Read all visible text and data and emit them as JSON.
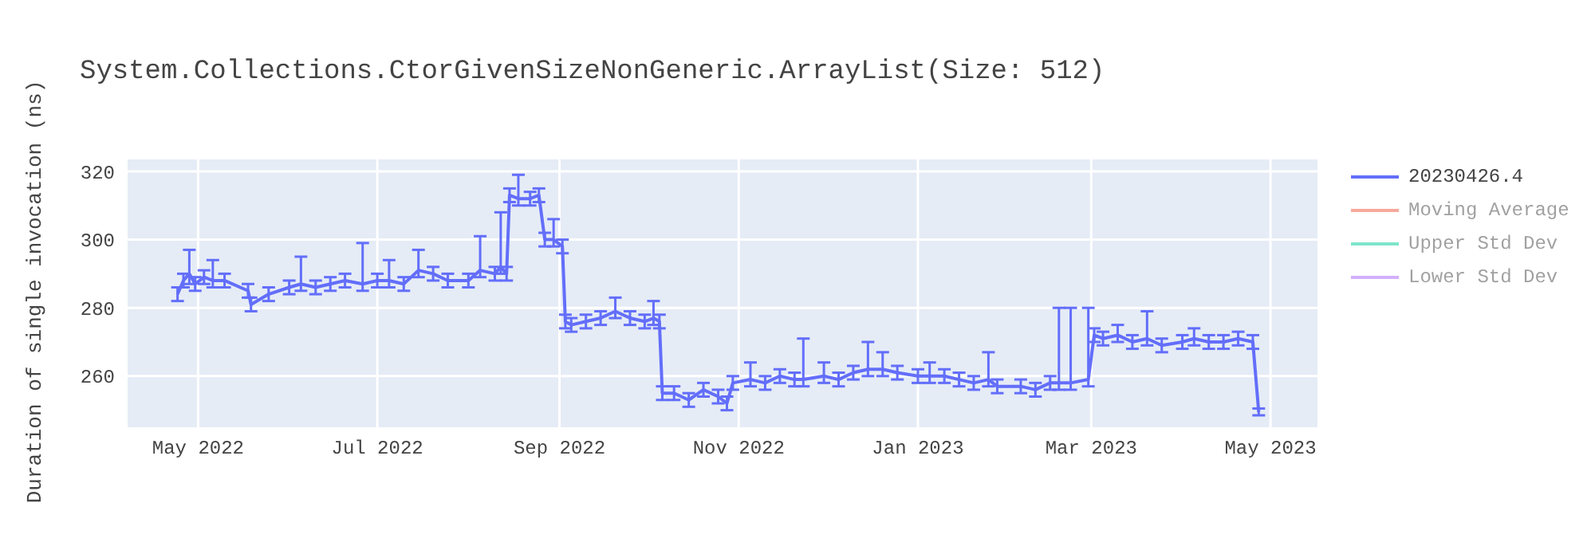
{
  "chart_data": {
    "type": "line",
    "title": "System.Collections.CtorGivenSizeNonGeneric.ArrayList(Size: 512)",
    "ylabel": "Duration of single invocation (ns)",
    "x": [
      "2022-04-24",
      "2022-04-26",
      "2022-04-28",
      "2022-04-30",
      "2022-05-03",
      "2022-05-06",
      "2022-05-10",
      "2022-05-18",
      "2022-05-19",
      "2022-05-25",
      "2022-06-01",
      "2022-06-05",
      "2022-06-10",
      "2022-06-15",
      "2022-06-20",
      "2022-06-26",
      "2022-07-01",
      "2022-07-05",
      "2022-07-10",
      "2022-07-15",
      "2022-07-20",
      "2022-07-25",
      "2022-08-01",
      "2022-08-05",
      "2022-08-10",
      "2022-08-12",
      "2022-08-14",
      "2022-08-15",
      "2022-08-18",
      "2022-08-22",
      "2022-08-25",
      "2022-08-27",
      "2022-08-30",
      "2022-09-02",
      "2022-09-03",
      "2022-09-05",
      "2022-09-10",
      "2022-09-15",
      "2022-09-20",
      "2022-09-25",
      "2022-09-30",
      "2022-10-03",
      "2022-10-05",
      "2022-10-06",
      "2022-10-10",
      "2022-10-15",
      "2022-10-20",
      "2022-10-25",
      "2022-10-28",
      "2022-10-30",
      "2022-11-05",
      "2022-11-10",
      "2022-11-15",
      "2022-11-20",
      "2022-11-23",
      "2022-11-30",
      "2022-12-05",
      "2022-12-10",
      "2022-12-15",
      "2022-12-20",
      "2022-12-25",
      "2023-01-01",
      "2023-01-05",
      "2023-01-10",
      "2023-01-15",
      "2023-01-20",
      "2023-01-25",
      "2023-01-28",
      "2023-02-05",
      "2023-02-10",
      "2023-02-15",
      "2023-02-18",
      "2023-02-22",
      "2023-02-28",
      "2023-03-02",
      "2023-03-05",
      "2023-03-10",
      "2023-03-15",
      "2023-03-20",
      "2023-03-25",
      "2023-04-01",
      "2023-04-05",
      "2023-04-10",
      "2023-04-15",
      "2023-04-20",
      "2023-04-25",
      "2023-04-27"
    ],
    "series": [
      {
        "name": "20230426.4",
        "color": "#636efa",
        "values": [
          284,
          288,
          290,
          287,
          289,
          288,
          288,
          285,
          281,
          284,
          286,
          287,
          286,
          287,
          288,
          287,
          288,
          288,
          287,
          291,
          290,
          288,
          288,
          291,
          290,
          292,
          290,
          313,
          312,
          312,
          313,
          300,
          300,
          298,
          276,
          275,
          276,
          277,
          279,
          277,
          276,
          277,
          276,
          255,
          255,
          253,
          256,
          254,
          252,
          258,
          259,
          258,
          260,
          259,
          259,
          260,
          259,
          261,
          262,
          262,
          261,
          260,
          260,
          260,
          259,
          258,
          259,
          257,
          257,
          256,
          258,
          258,
          258,
          259,
          272,
          271,
          272,
          270,
          271,
          269,
          270,
          271,
          270,
          270,
          271,
          270,
          249.5
        ],
        "errors": [
          2,
          2,
          [
            287,
            297
          ],
          2,
          2,
          [
            286,
            294
          ],
          2,
          2,
          2,
          2,
          2,
          [
            285,
            295
          ],
          2,
          2,
          2,
          [
            285,
            299
          ],
          2,
          [
            286,
            294
          ],
          2,
          [
            289,
            297
          ],
          2,
          2,
          2,
          [
            289,
            301
          ],
          2,
          [
            290,
            308
          ],
          2,
          2,
          [
            310,
            319
          ],
          2,
          2,
          2,
          [
            298,
            306
          ],
          2,
          2,
          2,
          2,
          2,
          [
            277,
            283
          ],
          2,
          2,
          [
            275,
            282
          ],
          2,
          2,
          2,
          2,
          2,
          2,
          2,
          2,
          [
            257,
            264
          ],
          2,
          2,
          2,
          [
            257,
            271
          ],
          [
            258,
            264
          ],
          2,
          2,
          [
            260,
            270
          ],
          [
            260,
            267
          ],
          2,
          2,
          [
            258,
            264
          ],
          2,
          2,
          2,
          [
            257,
            267
          ],
          2,
          2,
          2,
          2,
          [
            256,
            280
          ],
          [
            256,
            280
          ],
          [
            257,
            280
          ],
          2,
          2,
          [
            270,
            275
          ],
          2,
          [
            269,
            279
          ],
          2,
          2,
          [
            269,
            274
          ],
          2,
          2,
          2,
          2,
          1
        ]
      },
      {
        "name": "Moving Average",
        "color": "#ef553b",
        "values": [
          null,
          null,
          null,
          null,
          null,
          null,
          null,
          null,
          null,
          null,
          null,
          null,
          null,
          null,
          null,
          null,
          null,
          null,
          null,
          null,
          null,
          null,
          null,
          null,
          null,
          null,
          null,
          null,
          null,
          null,
          null,
          null,
          null,
          null,
          null,
          null,
          null,
          null,
          null,
          null,
          null,
          null,
          null,
          null,
          null,
          null,
          null,
          null,
          null,
          null,
          null,
          null,
          null,
          null,
          null,
          null,
          null,
          null,
          null,
          null,
          null,
          null,
          null,
          null,
          null,
          null,
          null,
          null,
          null,
          null,
          null,
          null,
          null,
          null,
          null,
          null,
          null,
          null,
          null,
          null,
          null,
          null,
          null,
          null,
          null,
          null,
          null
        ]
      },
      {
        "name": "Upper Std Dev",
        "color": "#00cc96",
        "values": [
          null,
          null,
          null,
          null,
          null,
          null,
          null,
          null,
          null,
          null,
          null,
          null,
          null,
          null,
          null,
          null,
          null,
          null,
          null,
          null,
          null,
          null,
          null,
          null,
          null,
          null,
          null,
          null,
          null,
          null,
          null,
          null,
          null,
          null,
          null,
          null,
          null,
          null,
          null,
          null,
          null,
          null,
          null,
          null,
          null,
          null,
          null,
          null,
          null,
          null,
          null,
          null,
          null,
          null,
          null,
          null,
          null,
          null,
          null,
          null,
          null,
          null,
          null,
          null,
          null,
          null,
          null,
          null,
          null,
          null,
          null,
          null,
          null,
          null,
          null,
          null,
          null,
          null,
          null,
          null,
          null,
          null,
          null,
          null,
          null,
          null,
          null
        ]
      },
      {
        "name": "Lower Std Dev",
        "color": "#ab63fa",
        "values": [
          null,
          null,
          null,
          null,
          null,
          null,
          null,
          null,
          null,
          null,
          null,
          null,
          null,
          null,
          null,
          null,
          null,
          null,
          null,
          null,
          null,
          null,
          null,
          null,
          null,
          null,
          null,
          null,
          null,
          null,
          null,
          null,
          null,
          null,
          null,
          null,
          null,
          null,
          null,
          null,
          null,
          null,
          null,
          null,
          null,
          null,
          null,
          null,
          null,
          null,
          null,
          null,
          null,
          null,
          null,
          null,
          null,
          null,
          null,
          null,
          null,
          null,
          null,
          null,
          null,
          null,
          null,
          null,
          null,
          null,
          null,
          null,
          null,
          null,
          null,
          null,
          null,
          null,
          null,
          null,
          null,
          null,
          null,
          null,
          null,
          null,
          null
        ]
      }
    ],
    "xlim": [
      "2022-04-07",
      "2023-05-17"
    ],
    "xticks": [
      {
        "value": "2022-05-01",
        "label": "May 2022"
      },
      {
        "value": "2022-07-01",
        "label": "Jul 2022"
      },
      {
        "value": "2022-09-01",
        "label": "Sep 2022"
      },
      {
        "value": "2022-11-01",
        "label": "Nov 2022"
      },
      {
        "value": "2023-01-01",
        "label": "Jan 2023"
      },
      {
        "value": "2023-03-01",
        "label": "Mar 2023"
      },
      {
        "value": "2023-05-01",
        "label": "May 2023"
      }
    ],
    "ylim": [
      245,
      323.5
    ],
    "yticks": [
      260,
      280,
      300,
      320
    ],
    "grid": true,
    "legend": "right",
    "marker": "none",
    "line_style": "solid"
  }
}
